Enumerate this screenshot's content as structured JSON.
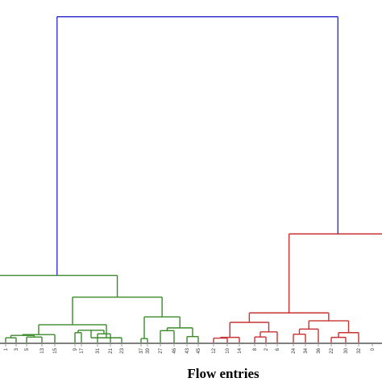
{
  "chart_data": {
    "type": "dendrogram",
    "xlabel": "Flow entries",
    "leaves": [
      "1",
      "3",
      "5",
      "13",
      "15",
      "9",
      "17",
      "31",
      "21",
      "23",
      "37",
      "39",
      "27",
      "46",
      "43",
      "45",
      "12",
      "10",
      "14",
      "8",
      "2",
      "6",
      "24",
      "34",
      "36",
      "22",
      "30",
      "32",
      "0"
    ],
    "colors": {
      "root": "#3333cc",
      "cluster_green": "#3a8a2a",
      "cluster_red": "#c83232",
      "axis": "#000000",
      "tick": "#888888"
    },
    "links": [
      {
        "leaves": [
          "1",
          "3"
        ],
        "height": 0.012,
        "cluster": "green"
      },
      {
        "leaves": [
          "5",
          "13"
        ],
        "height": 0.014,
        "cluster": "green"
      },
      {
        "leaves": [
          "1-3",
          "5-13"
        ],
        "height": 0.018,
        "cluster": "green"
      },
      {
        "leaves": [
          "1-3-5-13",
          "15"
        ],
        "height": 0.02,
        "cluster": "green"
      },
      {
        "leaves": [
          "9",
          "17"
        ],
        "height": 0.025,
        "cluster": "green"
      },
      {
        "leaves": [
          "31",
          "21"
        ],
        "height": 0.022,
        "cluster": "green"
      },
      {
        "leaves": [
          "9-17",
          "31-21"
        ],
        "height": 0.031,
        "cluster": "green"
      },
      {
        "leaves": [
          "9-17-31-21",
          "23"
        ],
        "height": 0.012,
        "cluster": "green"
      },
      {
        "leaves": [
          "1-15",
          "9-23"
        ],
        "height": 0.045,
        "cluster": "green"
      },
      {
        "leaves": [
          "37",
          "39"
        ],
        "height": 0.01,
        "cluster": "green"
      },
      {
        "leaves": [
          "27",
          "46"
        ],
        "height": 0.03,
        "cluster": "green"
      },
      {
        "leaves": [
          "43",
          "45"
        ],
        "height": 0.015,
        "cluster": "green"
      },
      {
        "leaves": [
          "27-46",
          "43-45"
        ],
        "height": 0.037,
        "cluster": "green"
      },
      {
        "leaves": [
          "37-39",
          "27-45"
        ],
        "height": 0.065,
        "cluster": "green"
      },
      {
        "leaves": [
          "1-23",
          "37-45"
        ],
        "height": 0.115,
        "cluster": "green"
      },
      {
        "leaves": [
          "outside-left",
          "1-45"
        ],
        "height": 0.17,
        "cluster": "green"
      },
      {
        "leaves": [
          "12",
          "10"
        ],
        "height": 0.011,
        "cluster": "red"
      },
      {
        "leaves": [
          "12-10",
          "14"
        ],
        "height": 0.013,
        "cluster": "red"
      },
      {
        "leaves": [
          "8",
          "2"
        ],
        "height": 0.014,
        "cluster": "red"
      },
      {
        "leaves": [
          "8-2",
          "6"
        ],
        "height": 0.027,
        "cluster": "red"
      },
      {
        "leaves": [
          "12-14",
          "8-6"
        ],
        "height": 0.051,
        "cluster": "red"
      },
      {
        "leaves": [
          "24",
          "34"
        ],
        "height": 0.021,
        "cluster": "red"
      },
      {
        "leaves": [
          "24-34",
          "36"
        ],
        "height": 0.034,
        "cluster": "red"
      },
      {
        "leaves": [
          "22",
          "30"
        ],
        "height": 0.013,
        "cluster": "red"
      },
      {
        "leaves": [
          "22-30",
          "32"
        ],
        "height": 0.025,
        "cluster": "red"
      },
      {
        "leaves": [
          "24-36",
          "22-32"
        ],
        "height": 0.055,
        "cluster": "red"
      },
      {
        "leaves": [
          "12-6",
          "24-32"
        ],
        "height": 0.075,
        "cluster": "red"
      },
      {
        "leaves": [
          "12-32",
          "0-right"
        ],
        "height": 0.275,
        "cluster": "red"
      },
      {
        "leaves": [
          "green-root",
          "red-root"
        ],
        "height": 0.825,
        "cluster": "root"
      }
    ]
  }
}
